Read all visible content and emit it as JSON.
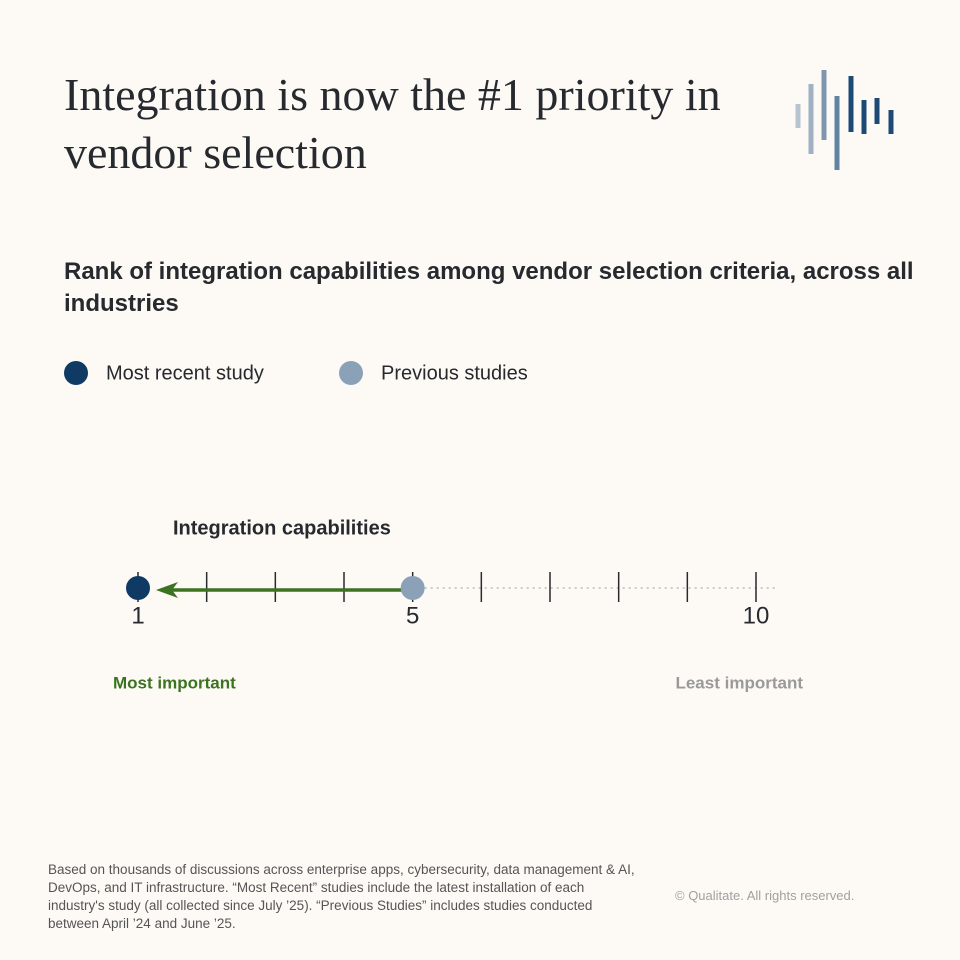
{
  "chart_data": {
    "type": "rank-arrow",
    "title": "Integration is now the #1 priority in vendor selection",
    "subtitle": "Rank of integration capabilities among vendor selection criteria, across all industries",
    "categories": [
      "Integration capabilities"
    ],
    "series": [
      {
        "name": "Most recent study",
        "color": "#0e3a64",
        "values": [
          1
        ]
      },
      {
        "name": "Previous studies",
        "color": "#8aa1b7",
        "values": [
          5
        ]
      }
    ],
    "arrow_color": "#3b7320",
    "xlim": [
      1,
      10
    ],
    "xticks": [
      1,
      5,
      10
    ],
    "minor_xticks": [
      2,
      3,
      4,
      6,
      7,
      8,
      9
    ],
    "annotations": [
      {
        "text": "Most important",
        "color": "#3b7320"
      },
      {
        "text": "Least important",
        "color": "#9a9a9a"
      }
    ],
    "footnote": "Based on thousands of discussions across enterprise apps, cybersecurity, data management & AI, DevOps, and IT infrastructure. “Most Recent” studies include the latest installation of each industry's study (all collected since July ’25). “Previous Studies” includes studies conducted between April ’24 and June ’25.",
    "copyright": "© Qualitate. All rights reserved."
  }
}
